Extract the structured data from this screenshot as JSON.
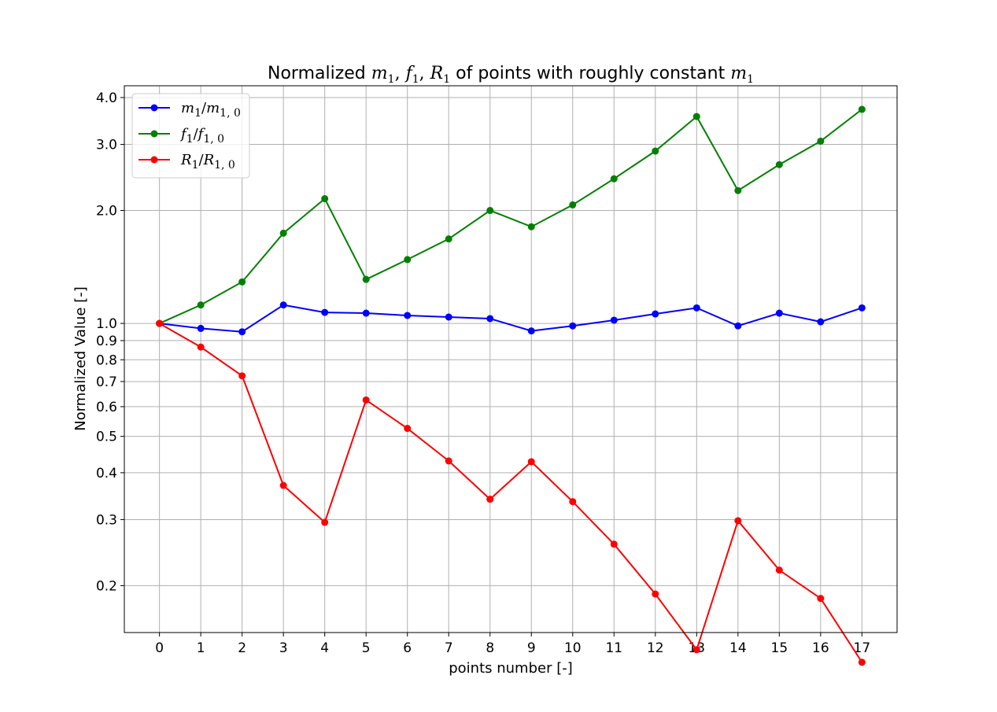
{
  "chart_data": {
    "type": "line",
    "title": {
      "prefix": "Normalized ",
      "m": "m",
      "m_sub": "1",
      "f": "f",
      "f_sub": "1",
      "R": "R",
      "R_sub": "1",
      "middle": " of points with roughly constant ",
      "m2": "m",
      "m2_sub": "1"
    },
    "xlabel": "points number [-]",
    "ylabel": "Normalized Value [-]",
    "yscale": "log",
    "ylim": [
      0.15,
      4.3
    ],
    "xlim": [
      -0.85,
      17.85
    ],
    "grid": true,
    "legend_position": "top-left",
    "x": [
      0,
      1,
      2,
      3,
      4,
      5,
      6,
      7,
      8,
      9,
      10,
      11,
      12,
      13,
      14,
      15,
      16,
      17
    ],
    "x_tick_labels": [
      "0",
      "1",
      "2",
      "3",
      "4",
      "5",
      "6",
      "7",
      "8",
      "9",
      "10",
      "11",
      "12",
      "13",
      "14",
      "15",
      "16",
      "17"
    ],
    "y_ticks": [
      0.2,
      0.3,
      0.4,
      0.5,
      0.6,
      0.7,
      0.8,
      0.9,
      1.0,
      2.0,
      3.0,
      4.0
    ],
    "y_tick_labels": [
      "0.2",
      "0.3",
      "0.4",
      "0.5",
      "0.6",
      "0.7",
      "0.8",
      "0.9",
      "1.0",
      "2.0",
      "3.0",
      "4.0"
    ],
    "series": [
      {
        "color": "#0000ff",
        "legend": {
          "num": "m",
          "num_sub": "1",
          "den": "m",
          "den_sub": "1, 0"
        },
        "values": [
          1.0,
          0.97,
          0.95,
          1.12,
          1.07,
          1.065,
          1.05,
          1.04,
          1.03,
          0.955,
          0.985,
          1.02,
          1.06,
          1.1,
          0.985,
          1.065,
          1.01,
          1.1
        ]
      },
      {
        "color": "#008000",
        "legend": {
          "num": "f",
          "num_sub": "1",
          "den": "f",
          "den_sub": "1, 0"
        },
        "values": [
          1.0,
          1.12,
          1.29,
          1.74,
          2.15,
          1.31,
          1.48,
          1.68,
          2.0,
          1.81,
          2.07,
          2.43,
          2.88,
          3.56,
          2.26,
          2.65,
          3.06,
          3.72
        ]
      },
      {
        "color": "#ff0000",
        "legend": {
          "num": "R",
          "num_sub": "1",
          "den": "R",
          "den_sub": "1, 0"
        },
        "values": [
          1.0,
          0.865,
          0.725,
          0.37,
          0.295,
          0.625,
          0.525,
          0.43,
          0.34,
          0.428,
          0.335,
          0.258,
          0.19,
          0.135,
          0.298,
          0.22,
          0.185,
          0.125
        ]
      }
    ]
  }
}
